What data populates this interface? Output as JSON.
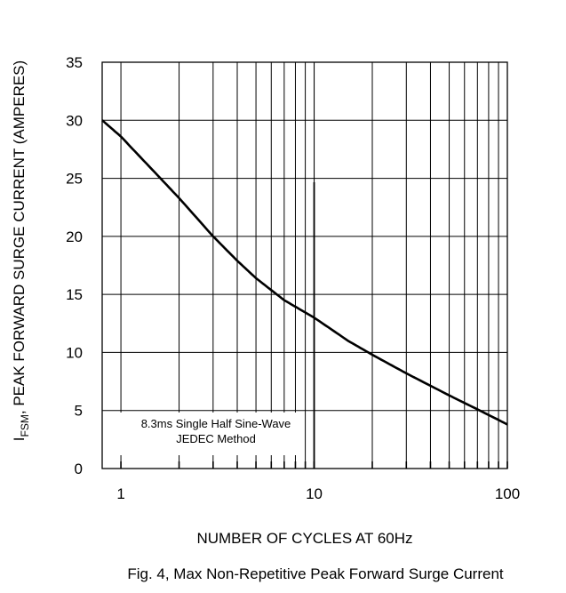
{
  "chart_data": {
    "type": "line",
    "title": "",
    "caption": "Fig. 4,  Max Non-Repetitive Peak Forward Surge Current",
    "xlabel": "NUMBER OF CYCLES AT 60Hz",
    "ylabel_main": "I",
    "ylabel_sub": "FSM",
    "ylabel_rest": ", PEAK FORWARD SURGE CURRENT (AMPERES)",
    "xscale": "log",
    "xlim": [
      0.8,
      100
    ],
    "ylim": [
      0,
      35
    ],
    "xticks": [
      1,
      10,
      100
    ],
    "xtick_labels": [
      "1",
      "10",
      "100"
    ],
    "yticks": [
      0,
      5,
      10,
      15,
      20,
      25,
      30,
      35
    ],
    "ytick_labels": [
      "0",
      "5",
      "10",
      "15",
      "20",
      "25",
      "30",
      "35"
    ],
    "grid": true,
    "annotation": [
      "8.3ms Single Half Sine-Wave",
      "JEDEC Method"
    ],
    "series": [
      {
        "x": [
          0.8,
          1,
          1.5,
          2,
          3,
          4,
          5,
          7,
          10,
          15,
          20,
          30,
          50,
          70,
          100
        ],
        "y": [
          30,
          28.6,
          25.5,
          23.3,
          20.0,
          17.9,
          16.4,
          14.5,
          13.0,
          11.0,
          9.8,
          8.2,
          6.3,
          5.1,
          3.8
        ]
      }
    ]
  }
}
